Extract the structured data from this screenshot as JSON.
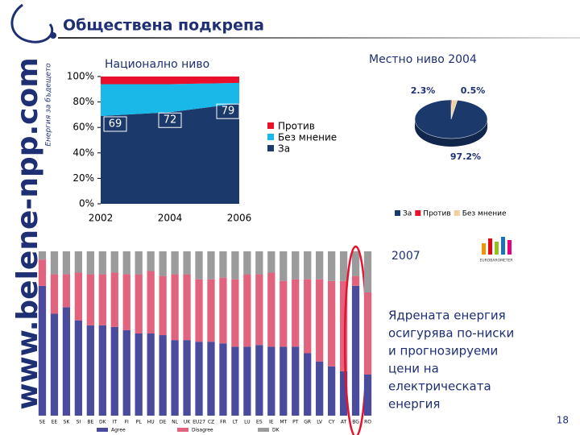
{
  "banner": {
    "site": "www.belene-npp.com",
    "tagline": "Енергия за бъдещето"
  },
  "title": "Обществена подкрепа",
  "chart_data": [
    {
      "type": "area",
      "title": "Национално ниво",
      "x": [
        2002,
        2004,
        2006
      ],
      "xlim": [
        2002,
        2006
      ],
      "xticks": [
        2002,
        2004,
        2006
      ],
      "ylim": [
        0,
        100
      ],
      "yticks": [
        {
          "value": 0,
          "label": "0%"
        },
        {
          "value": 20,
          "label": "20%"
        },
        {
          "value": 40,
          "label": "40%"
        },
        {
          "value": 60,
          "label": "60%"
        },
        {
          "value": 80,
          "label": "80%"
        },
        {
          "value": 100,
          "label": "100%"
        }
      ],
      "stacked": true,
      "series": [
        {
          "name": "За",
          "color": "#1b3a6b",
          "values": [
            69,
            72,
            79
          ],
          "show_labels": true
        },
        {
          "name": "Без мнение",
          "color": "#1ab8e8",
          "values": [
            25,
            22,
            16
          ]
        },
        {
          "name": "Против",
          "color": "#e8102a",
          "values": [
            6,
            6,
            5
          ]
        }
      ],
      "legend_order": [
        2,
        1,
        0
      ]
    },
    {
      "type": "pie",
      "title": "Местно ниво  2004",
      "categories": [
        "Против",
        "Без мнение",
        "За"
      ],
      "values": [
        0.5,
        2.3,
        97.2
      ],
      "value_labels": [
        "0.5%",
        "2.3%",
        "97.2%"
      ],
      "colors": [
        "#e8102a",
        "#f2cfa0",
        "#1b3a6b"
      ],
      "legend_order": [
        2,
        0,
        1
      ]
    },
    {
      "type": "bar",
      "stacked": true,
      "categories": [
        "SE",
        "EE",
        "SK",
        "SI",
        "BE",
        "DK",
        "IT",
        "FI",
        "PL",
        "HU",
        "DE",
        "NL",
        "UK",
        "EU27",
        "CZ",
        "FR",
        "LT",
        "LU",
        "ES",
        "IE",
        "MT",
        "PT",
        "GR",
        "LV",
        "CY",
        "AT",
        "BG",
        "RO"
      ],
      "ylim": [
        0,
        100
      ],
      "series": [
        {
          "name": "Agree",
          "color": "#4b4b9e",
          "values": [
            79,
            62,
            66,
            58,
            55,
            55,
            54,
            52,
            50,
            50,
            49,
            46,
            46,
            45,
            45,
            44,
            42,
            42,
            43,
            42,
            42,
            42,
            38,
            33,
            30,
            27,
            79,
            25
          ]
        },
        {
          "name": "Disagree",
          "color": "#e2637e",
          "values": [
            16,
            24,
            20,
            29,
            31,
            31,
            33,
            34,
            36,
            38,
            36,
            40,
            40,
            38,
            38,
            40,
            41,
            44,
            43,
            45,
            40,
            41,
            45,
            50,
            52,
            55,
            6,
            50
          ]
        },
        {
          "name": "DK",
          "color": "#9b9b9b",
          "values": [
            5,
            14,
            14,
            13,
            14,
            14,
            13,
            14,
            14,
            12,
            15,
            14,
            14,
            17,
            17,
            16,
            17,
            14,
            14,
            13,
            18,
            17,
            17,
            17,
            18,
            18,
            15,
            25
          ]
        }
      ],
      "highlight": 26
    }
  ],
  "right_panel": {
    "year": "2007",
    "logo": "EUROBAROMETER",
    "text": [
      "Ядрената енергия",
      "осигурява по-ниски",
      "и прогнозируеми",
      "цени на",
      "електрическата",
      "енергия"
    ]
  },
  "page_number": "18"
}
